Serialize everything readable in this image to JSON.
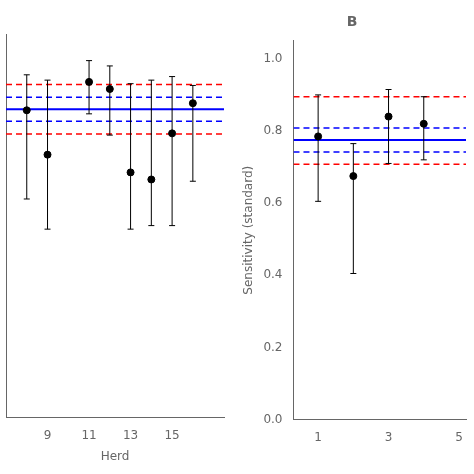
{
  "chart_data": [
    {
      "type": "scatter",
      "xlabel": "Herd",
      "xlim": [
        7.0,
        17.5
      ],
      "xticks": [
        9,
        11,
        13,
        15
      ],
      "ylim": [
        0.0,
        1.08
      ],
      "yticks": [],
      "tick_labels": "x",
      "grid": false,
      "series": [
        {
          "type": "hline",
          "color": "#0000FF",
          "line_style": "solid",
          "values": [
            0.868
          ]
        },
        {
          "type": "hline",
          "color": "#0000FF",
          "line_style": "dashed",
          "values": [
            0.902
          ]
        },
        {
          "type": "hline",
          "color": "#0000FF",
          "line_style": "dashed",
          "values": [
            0.834
          ]
        },
        {
          "type": "hline",
          "color": "#FF0000",
          "line_style": "dashed",
          "values": [
            0.938
          ]
        },
        {
          "type": "hline",
          "color": "#FF0000",
          "line_style": "dashed",
          "values": [
            0.798
          ]
        },
        {
          "type": "scatter",
          "color": "black",
          "marker": "circle",
          "x": [
            8,
            9,
            11,
            12,
            13,
            14,
            15,
            16
          ],
          "values": [
            0.865,
            0.74,
            0.945,
            0.925,
            0.69,
            0.67,
            0.8,
            0.885
          ],
          "error_low": [
            0.25,
            0.21,
            0.09,
            0.13,
            0.16,
            0.13,
            0.26,
            0.22
          ],
          "error_high": [
            0.1,
            0.21,
            0.06,
            0.065,
            0.25,
            0.28,
            0.16,
            0.05
          ]
        }
      ]
    },
    {
      "type": "scatter",
      "title": "B",
      "ylabel": "Sensitivity (standard)",
      "xlim": [
        0.3,
        5.2
      ],
      "xticks": [
        1,
        3,
        5
      ],
      "ylim": [
        0.0,
        1.05
      ],
      "yticks": [
        {
          "value": 0,
          "label": "0.0"
        },
        0.2,
        0.4,
        0.6,
        0.8,
        {
          "value": 1,
          "label": "1.0"
        }
      ],
      "grid": false,
      "series": [
        {
          "type": "hline",
          "color": "#0000FF",
          "line_style": "solid",
          "values": [
            0.775
          ]
        },
        {
          "type": "hline",
          "color": "#0000FF",
          "line_style": "dashed",
          "values": [
            0.808
          ]
        },
        {
          "type": "hline",
          "color": "#0000FF",
          "line_style": "dashed",
          "values": [
            0.742
          ]
        },
        {
          "type": "hline",
          "color": "#FF0000",
          "line_style": "dashed",
          "values": [
            0.895
          ]
        },
        {
          "type": "hline",
          "color": "#FF0000",
          "line_style": "dashed",
          "values": [
            0.708
          ]
        },
        {
          "type": "scatter",
          "color": "black",
          "marker": "circle",
          "x": [
            1,
            2,
            3,
            4
          ],
          "values": [
            0.785,
            0.675,
            0.84,
            0.82
          ],
          "error_low": [
            0.18,
            0.27,
            0.13,
            0.1
          ],
          "error_high": [
            0.115,
            0.09,
            0.075,
            0.075
          ]
        }
      ]
    }
  ]
}
